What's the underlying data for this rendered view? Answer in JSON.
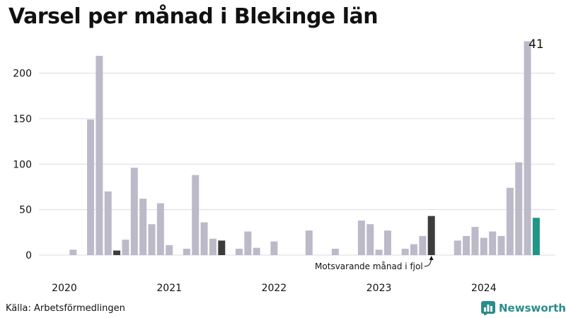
{
  "chart_data": {
    "type": "bar",
    "title": "Varsel per månad i Blekinge län",
    "xlabel": "",
    "ylabel": "",
    "ylim": [
      0,
      240
    ],
    "yticks": [
      0,
      50,
      100,
      150,
      200
    ],
    "year_labels": [
      "2020",
      "2021",
      "2022",
      "2023",
      "2024"
    ],
    "grid": true,
    "series": [
      {
        "values": [
          0,
          6,
          0,
          149,
          219,
          70,
          5,
          17,
          96,
          62,
          34,
          57,
          11,
          0,
          7,
          88,
          36,
          18,
          16,
          0,
          7,
          26,
          8,
          0,
          15,
          0,
          0,
          0,
          27,
          0,
          0,
          7,
          0,
          0,
          38,
          34,
          6,
          27,
          0,
          7,
          12,
          21,
          43,
          0,
          0,
          16,
          21,
          31,
          19,
          26,
          21,
          74,
          102,
          235,
          41
        ]
      }
    ],
    "highlight_year_ago_indices": [
      6,
      18,
      42
    ],
    "current_index": 54,
    "current_value_label": "41",
    "annotation": "Motsvarande månad i fjol",
    "colors": {
      "default": "#bcbac9",
      "year_ago": "#3c3c3c",
      "current": "#1f9688",
      "grid": "#dcdcdc",
      "text": "#111111"
    }
  },
  "source": "Källa: Arbetsförmedlingen",
  "brand": {
    "name": "Newsworthy",
    "icon": "bar-chart-icon",
    "color": "#2a8c8c"
  }
}
